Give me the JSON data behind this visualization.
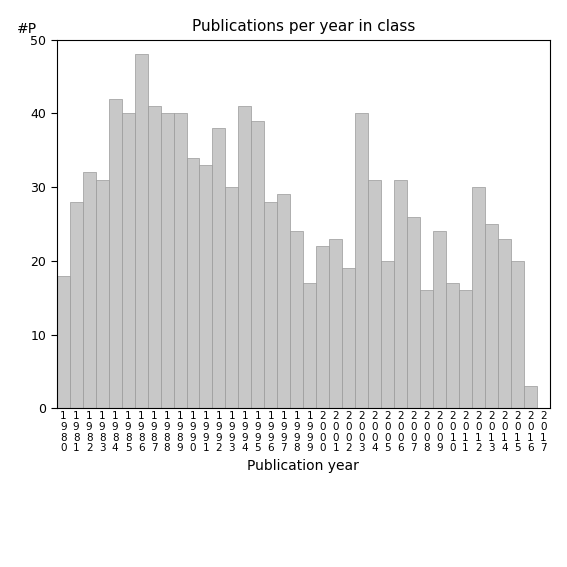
{
  "years": [
    1980,
    1981,
    1982,
    1983,
    1984,
    1985,
    1986,
    1987,
    1988,
    1989,
    1990,
    1991,
    1992,
    1993,
    1994,
    1995,
    1996,
    1997,
    1998,
    1999,
    2000,
    2001,
    2002,
    2003,
    2004,
    2005,
    2006,
    2007,
    2008,
    2009,
    2010,
    2011,
    2012,
    2013,
    2014,
    2015,
    2016,
    2017
  ],
  "values": [
    18,
    28,
    32,
    31,
    42,
    40,
    48,
    41,
    40,
    40,
    34,
    33,
    38,
    30,
    41,
    39,
    28,
    29,
    24,
    17,
    22,
    23,
    19,
    40,
    31,
    20,
    31,
    26,
    16,
    24,
    17,
    16,
    30,
    25,
    23,
    20,
    3,
    0
  ],
  "title": "Publications per year in class",
  "xlabel": "Publication year",
  "ylabel": "#P",
  "ylim": [
    0,
    50
  ],
  "yticks": [
    0,
    10,
    20,
    30,
    40,
    50
  ],
  "bar_color": "#c8c8c8",
  "bar_edgecolor": "#999999",
  "background_color": "#ffffff"
}
